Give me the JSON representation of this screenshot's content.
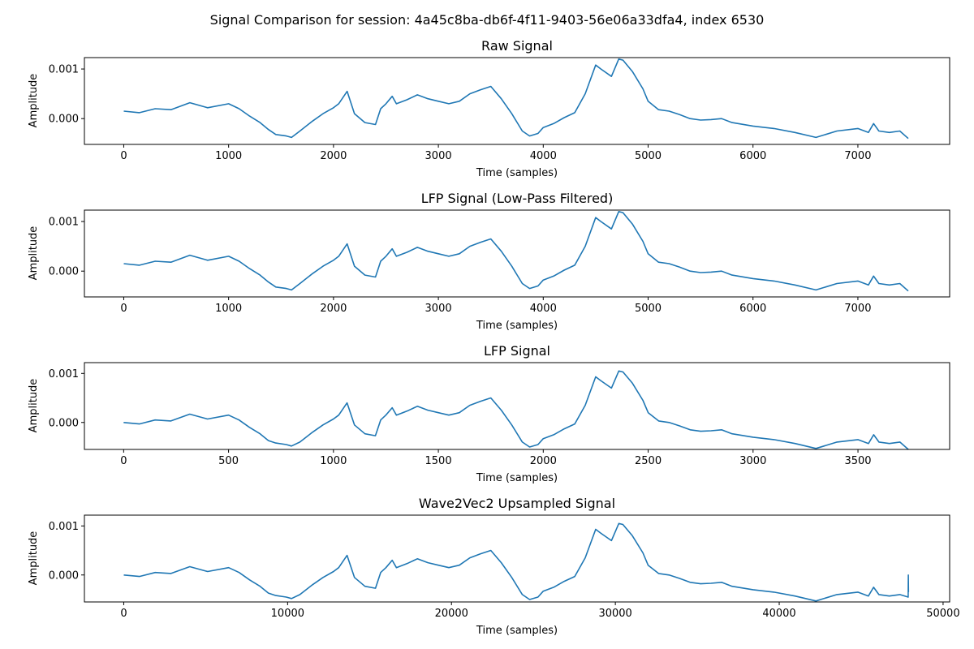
{
  "figure": {
    "suptitle": "Signal Comparison for session: 4a45c8ba-db6f-4f11-9403-56e06a33dfa4, index 6530",
    "line_color": "#1f77b4"
  },
  "chart_data": [
    {
      "type": "line",
      "title": "Raw Signal",
      "xlabel": "Time (samples)",
      "ylabel": "Amplitude",
      "xlim": [
        -375,
        7875
      ],
      "ylim": [
        -0.00052,
        0.00123
      ],
      "xticks": [
        0,
        1000,
        2000,
        3000,
        4000,
        5000,
        6000,
        7000
      ],
      "xtick_labels": [
        "0",
        "1000",
        "2000",
        "3000",
        "4000",
        "5000",
        "6000",
        "7000"
      ],
      "yticks": [
        0.0,
        0.001
      ],
      "ytick_labels": [
        "0.000",
        "0.001"
      ],
      "grid": false,
      "series": [
        {
          "x": [
            0,
            150,
            300,
            450,
            630,
            800,
            1000,
            1100,
            1200,
            1300,
            1380,
            1450,
            1550,
            1600,
            1680,
            1800,
            1900,
            2000,
            2050,
            2130,
            2200,
            2300,
            2400,
            2450,
            2500,
            2560,
            2600,
            2700,
            2800,
            2900,
            3000,
            3100,
            3200,
            3300,
            3400,
            3500,
            3600,
            3700,
            3800,
            3870,
            3950,
            4000,
            4100,
            4200,
            4300,
            4400,
            4500,
            4550,
            4650,
            4720,
            4760,
            4850,
            4950,
            5000,
            5100,
            5200,
            5300,
            5400,
            5500,
            5600,
            5700,
            5800,
            6000,
            6200,
            6400,
            6600,
            6800,
            7000,
            7100,
            7150,
            7200,
            7300,
            7400,
            7480
          ],
          "y": [
            0.00015,
            0.00012,
            0.0002,
            0.00018,
            0.00032,
            0.00022,
            0.0003,
            0.0002,
            5e-05,
            -8e-05,
            -0.00022,
            -0.00032,
            -0.00035,
            -0.00038,
            -0.00025,
            -5e-05,
            0.0001,
            0.00022,
            0.0003,
            0.00055,
            0.0001,
            -8e-05,
            -0.00012,
            0.0002,
            0.0003,
            0.00045,
            0.0003,
            0.00038,
            0.00048,
            0.0004,
            0.00035,
            0.0003,
            0.00035,
            0.0005,
            0.00058,
            0.00065,
            0.0004,
            0.0001,
            -0.00025,
            -0.00035,
            -0.0003,
            -0.00018,
            -0.0001,
            2e-05,
            0.00012,
            0.0005,
            0.00108,
            0.001,
            0.00085,
            0.0012,
            0.00118,
            0.00095,
            0.0006,
            0.00035,
            0.00018,
            0.00015,
            8e-05,
            0.0,
            -3e-05,
            -2e-05,
            0.0,
            -8e-05,
            -0.00015,
            -0.0002,
            -0.00028,
            -0.00038,
            -0.00025,
            -0.0002,
            -0.00028,
            -0.0001,
            -0.00025,
            -0.00028,
            -0.00025,
            -0.0004
          ]
        }
      ]
    },
    {
      "type": "line",
      "title": "LFP Signal (Low-Pass Filtered)",
      "xlabel": "Time (samples)",
      "ylabel": "Amplitude",
      "xlim": [
        -375,
        7875
      ],
      "ylim": [
        -0.00052,
        0.00123
      ],
      "xticks": [
        0,
        1000,
        2000,
        3000,
        4000,
        5000,
        6000,
        7000
      ],
      "xtick_labels": [
        "0",
        "1000",
        "2000",
        "3000",
        "4000",
        "5000",
        "6000",
        "7000"
      ],
      "yticks": [
        0.0,
        0.001
      ],
      "ytick_labels": [
        "0.000",
        "0.001"
      ],
      "grid": false,
      "series": [
        {
          "x": [
            0,
            150,
            300,
            450,
            630,
            800,
            1000,
            1100,
            1200,
            1300,
            1380,
            1450,
            1550,
            1600,
            1680,
            1800,
            1900,
            2000,
            2050,
            2130,
            2200,
            2300,
            2400,
            2450,
            2500,
            2560,
            2600,
            2700,
            2800,
            2900,
            3000,
            3100,
            3200,
            3300,
            3400,
            3500,
            3600,
            3700,
            3800,
            3870,
            3950,
            4000,
            4100,
            4200,
            4300,
            4400,
            4500,
            4550,
            4650,
            4720,
            4760,
            4850,
            4950,
            5000,
            5100,
            5200,
            5300,
            5400,
            5500,
            5600,
            5700,
            5800,
            6000,
            6200,
            6400,
            6600,
            6800,
            7000,
            7100,
            7150,
            7200,
            7300,
            7400,
            7480
          ],
          "y": [
            0.00015,
            0.00012,
            0.0002,
            0.00018,
            0.00032,
            0.00022,
            0.0003,
            0.0002,
            5e-05,
            -8e-05,
            -0.00022,
            -0.00032,
            -0.00035,
            -0.00038,
            -0.00025,
            -5e-05,
            0.0001,
            0.00022,
            0.0003,
            0.00055,
            0.0001,
            -8e-05,
            -0.00012,
            0.0002,
            0.0003,
            0.00045,
            0.0003,
            0.00038,
            0.00048,
            0.0004,
            0.00035,
            0.0003,
            0.00035,
            0.0005,
            0.00058,
            0.00065,
            0.0004,
            0.0001,
            -0.00025,
            -0.00035,
            -0.0003,
            -0.00018,
            -0.0001,
            2e-05,
            0.00012,
            0.0005,
            0.00108,
            0.001,
            0.00085,
            0.0012,
            0.00118,
            0.00095,
            0.0006,
            0.00035,
            0.00018,
            0.00015,
            8e-05,
            0.0,
            -3e-05,
            -2e-05,
            0.0,
            -8e-05,
            -0.00015,
            -0.0002,
            -0.00028,
            -0.00038,
            -0.00025,
            -0.0002,
            -0.00028,
            -0.0001,
            -0.00025,
            -0.00028,
            -0.00025,
            -0.0004
          ]
        }
      ]
    },
    {
      "type": "line",
      "title": "LFP Signal",
      "xlabel": "Time (samples)",
      "ylabel": "Amplitude",
      "xlim": [
        -187,
        3937
      ],
      "ylim": [
        -0.00055,
        0.00122
      ],
      "xticks": [
        0,
        500,
        1000,
        1500,
        2000,
        2500,
        3000,
        3500
      ],
      "xtick_labels": [
        "0",
        "500",
        "1000",
        "1500",
        "2000",
        "2500",
        "3000",
        "3500"
      ],
      "yticks": [
        0.0,
        0.001
      ],
      "ytick_labels": [
        "0.000",
        "0.001"
      ],
      "grid": false,
      "series": [
        {
          "x": [
            0,
            75,
            150,
            225,
            315,
            400,
            500,
            550,
            600,
            650,
            690,
            725,
            775,
            800,
            840,
            900,
            950,
            1000,
            1025,
            1065,
            1100,
            1150,
            1200,
            1225,
            1250,
            1280,
            1300,
            1350,
            1400,
            1450,
            1500,
            1550,
            1600,
            1650,
            1700,
            1750,
            1800,
            1850,
            1900,
            1935,
            1975,
            2000,
            2050,
            2100,
            2150,
            2200,
            2250,
            2275,
            2325,
            2360,
            2380,
            2425,
            2475,
            2500,
            2550,
            2600,
            2650,
            2700,
            2750,
            2800,
            2850,
            2900,
            3000,
            3100,
            3200,
            3300,
            3400,
            3500,
            3550,
            3575,
            3600,
            3650,
            3700,
            3740
          ],
          "y": [
            0.0,
            -3e-05,
            5e-05,
            3e-05,
            0.00017,
            7e-05,
            0.00015,
            5e-05,
            -0.0001,
            -0.00023,
            -0.00037,
            -0.00042,
            -0.00045,
            -0.00048,
            -0.0004,
            -0.0002,
            -5e-05,
            7e-05,
            0.00015,
            0.0004,
            -5e-05,
            -0.00023,
            -0.00027,
            5e-05,
            0.00015,
            0.0003,
            0.00015,
            0.00023,
            0.00033,
            0.00025,
            0.0002,
            0.00015,
            0.0002,
            0.00035,
            0.00043,
            0.0005,
            0.00025,
            -5e-05,
            -0.0004,
            -0.0005,
            -0.00045,
            -0.00033,
            -0.00025,
            -0.00013,
            -3e-05,
            0.00035,
            0.00093,
            0.00085,
            0.0007,
            0.00105,
            0.00103,
            0.0008,
            0.00045,
            0.0002,
            3e-05,
            0.0,
            -7e-05,
            -0.00015,
            -0.00018,
            -0.00017,
            -0.00015,
            -0.00023,
            -0.0003,
            -0.00035,
            -0.00043,
            -0.00053,
            -0.0004,
            -0.00035,
            -0.00043,
            -0.00025,
            -0.0004,
            -0.00043,
            -0.0004,
            -0.00055
          ]
        }
      ]
    },
    {
      "type": "line",
      "title": "Wave2Vec2 Upsampled Signal",
      "xlabel": "Time (samples)",
      "ylabel": "Amplitude",
      "xlim": [
        -2400,
        50400
      ],
      "ylim": [
        -0.00055,
        0.00122
      ],
      "xticks": [
        0,
        10000,
        20000,
        30000,
        40000,
        50000
      ],
      "xtick_labels": [
        "0",
        "10000",
        "20000",
        "30000",
        "40000",
        "50000"
      ],
      "yticks": [
        0.0,
        0.001
      ],
      "ytick_labels": [
        "0.000",
        "0.001"
      ],
      "grid": false,
      "series": [
        {
          "x": [
            0,
            960,
            1920,
            2880,
            4030,
            5120,
            6400,
            7040,
            7680,
            8320,
            8830,
            9280,
            9920,
            10240,
            10750,
            11520,
            12160,
            12800,
            13120,
            13630,
            14080,
            14720,
            15360,
            15680,
            16000,
            16380,
            16640,
            17280,
            17920,
            18560,
            19200,
            19840,
            20480,
            21120,
            21760,
            22400,
            23040,
            23680,
            24320,
            24770,
            25280,
            25600,
            26240,
            26880,
            27520,
            28160,
            28800,
            29120,
            29760,
            30210,
            30460,
            31040,
            31680,
            32000,
            32640,
            33280,
            33920,
            34560,
            35200,
            35840,
            36480,
            37120,
            38400,
            39680,
            40960,
            42240,
            43520,
            44800,
            45440,
            45760,
            46080,
            46720,
            47360,
            47870,
            47880,
            47890
          ],
          "y": [
            0.0,
            -3e-05,
            5e-05,
            3e-05,
            0.00017,
            7e-05,
            0.00015,
            5e-05,
            -0.0001,
            -0.00023,
            -0.00037,
            -0.00042,
            -0.00045,
            -0.00048,
            -0.0004,
            -0.0002,
            -5e-05,
            7e-05,
            0.00015,
            0.0004,
            -5e-05,
            -0.00023,
            -0.00027,
            5e-05,
            0.00015,
            0.0003,
            0.00015,
            0.00023,
            0.00033,
            0.00025,
            0.0002,
            0.00015,
            0.0002,
            0.00035,
            0.00043,
            0.0005,
            0.00025,
            -5e-05,
            -0.0004,
            -0.0005,
            -0.00045,
            -0.00033,
            -0.00025,
            -0.00013,
            -3e-05,
            0.00035,
            0.00093,
            0.00085,
            0.0007,
            0.00105,
            0.00103,
            0.0008,
            0.00045,
            0.0002,
            3e-05,
            0.0,
            -7e-05,
            -0.00015,
            -0.00018,
            -0.00017,
            -0.00015,
            -0.00023,
            -0.0003,
            -0.00035,
            -0.00043,
            -0.00053,
            -0.0004,
            -0.00035,
            -0.00043,
            -0.00025,
            -0.0004,
            -0.00043,
            -0.0004,
            -0.00045,
            0.0,
            -0.00035
          ]
        }
      ]
    }
  ]
}
